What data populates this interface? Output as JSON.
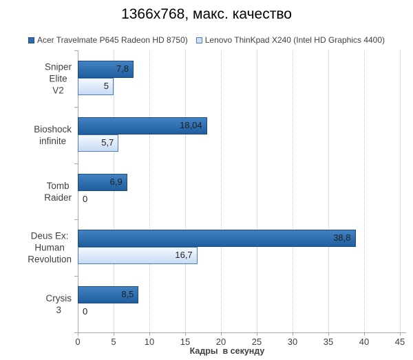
{
  "title": "1366x768, макс. качество",
  "chart_data": {
    "type": "bar",
    "orientation": "horizontal",
    "title": "1366x768, макс. качество",
    "categories": [
      "Sniper Elite V2",
      "Bioshock infinite",
      "Tomb Raider",
      "Deus Ex: Human\nRevolution",
      "Crysis 3"
    ],
    "series": [
      {
        "name": "Acer Travelmate P645 Radeon HD 8750)",
        "values": [
          7.8,
          18.04,
          6.9,
          38.8,
          8.5
        ],
        "value_labels": [
          "7,8",
          "18,04",
          "6,9",
          "38,8",
          "8,5"
        ],
        "color_top": "#4282c3",
        "color_bottom": "#1f5f9f",
        "border_color": "#1a4b7c"
      },
      {
        "name": "Lenovo ThinKpad X240 (Intel HD Graphics 4400)",
        "values": [
          5,
          5.7,
          0,
          16.7,
          0
        ],
        "value_labels": [
          "5",
          "5,7",
          "0",
          "16,7",
          "0"
        ],
        "color_top": "#f4f9fe",
        "color_bottom": "#c7dbf4",
        "border_color": "#4d7ebc"
      }
    ],
    "xlabel": "Кадры  в секунду",
    "xlim": [
      0,
      45
    ],
    "xticks": [
      0,
      5,
      10,
      15,
      20,
      25,
      30,
      35,
      40,
      45
    ],
    "xtick_labels": [
      "0",
      "5",
      "10",
      "15",
      "20",
      "25",
      "30",
      "35",
      "40",
      "45"
    ],
    "grid": "vertical-dotted",
    "legend_position": "top-center"
  },
  "colors": {
    "axis": "#a6a6a6",
    "gridline": "#c2c2c2",
    "text": "#3f3f3f",
    "title_text": "#000000",
    "value_label_text": "#1f1f1f",
    "background": "#ffffff"
  }
}
